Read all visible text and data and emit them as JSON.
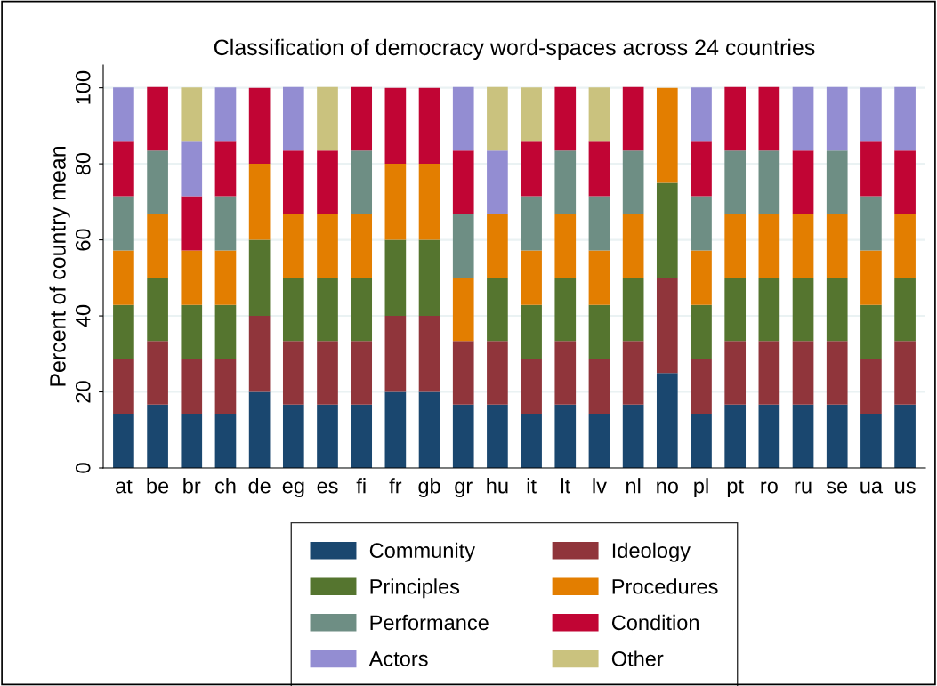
{
  "chart_data": {
    "type": "bar",
    "title": "Classification of democracy word-spaces across 24 countries",
    "ylabel": "Percent of country mean",
    "categories": [
      "at",
      "be",
      "br",
      "ch",
      "de",
      "eg",
      "es",
      "fi",
      "fr",
      "gb",
      "gr",
      "hu",
      "it",
      "lt",
      "lv",
      "nl",
      "no",
      "pl",
      "pt",
      "ro",
      "ru",
      "se",
      "ua",
      "us"
    ],
    "stacked": true,
    "ylim": [
      0,
      106
    ],
    "yticks": [
      0,
      20,
      40,
      60,
      80,
      100
    ],
    "grid": "y",
    "legend": "bottom",
    "series": [
      {
        "name": "Community",
        "color": "#1a476f",
        "values": [
          14.3,
          16.7,
          14.3,
          14.3,
          20,
          16.7,
          16.7,
          16.7,
          20,
          20,
          16.7,
          16.7,
          14.3,
          16.7,
          14.3,
          16.7,
          25,
          14.3,
          16.7,
          16.7,
          16.7,
          16.7,
          14.3,
          16.7
        ]
      },
      {
        "name": "Ideology",
        "color": "#90353b",
        "values": [
          14.3,
          16.7,
          14.3,
          14.3,
          20,
          16.7,
          16.7,
          16.7,
          20,
          20,
          16.7,
          16.7,
          14.3,
          16.7,
          14.3,
          16.7,
          25,
          14.3,
          16.7,
          16.7,
          16.7,
          16.7,
          14.3,
          16.7
        ]
      },
      {
        "name": "Principles",
        "color": "#55752f",
        "values": [
          14.3,
          16.7,
          14.3,
          14.3,
          20,
          16.7,
          16.7,
          16.7,
          20,
          20,
          0,
          16.7,
          14.3,
          16.7,
          14.3,
          16.7,
          25,
          14.3,
          16.7,
          16.7,
          16.7,
          16.7,
          14.3,
          16.7
        ]
      },
      {
        "name": "Procedures",
        "color": "#e37e00",
        "values": [
          14.3,
          16.7,
          14.3,
          14.3,
          20,
          16.7,
          16.7,
          16.7,
          20,
          20,
          16.7,
          16.7,
          14.3,
          16.7,
          14.3,
          16.7,
          25,
          14.3,
          16.7,
          16.7,
          16.7,
          16.7,
          14.3,
          16.7
        ]
      },
      {
        "name": "Performance",
        "color": "#6e8e84",
        "values": [
          14.3,
          16.7,
          0,
          14.3,
          0,
          0,
          0,
          16.7,
          0,
          0,
          16.7,
          0,
          14.3,
          16.7,
          14.3,
          16.7,
          0,
          14.3,
          16.7,
          16.7,
          0,
          16.7,
          14.3,
          0
        ]
      },
      {
        "name": "Condition",
        "color": "#c10534",
        "values": [
          14.3,
          16.7,
          14.3,
          14.3,
          20,
          16.7,
          16.7,
          16.7,
          20,
          20,
          16.7,
          0,
          14.3,
          16.7,
          14.3,
          16.7,
          0,
          14.3,
          16.7,
          16.7,
          16.7,
          0,
          14.3,
          16.7
        ]
      },
      {
        "name": "Actors",
        "color": "#938dd2",
        "values": [
          14.3,
          0,
          14.3,
          14.3,
          0,
          16.7,
          0,
          0,
          0,
          0,
          16.7,
          16.7,
          0,
          0,
          0,
          0,
          0,
          14.3,
          0,
          0,
          16.7,
          16.7,
          14.3,
          16.7
        ]
      },
      {
        "name": "Other",
        "color": "#cac27e",
        "values": [
          0,
          0,
          14.3,
          0,
          0,
          0,
          16.7,
          0,
          0,
          0,
          0,
          16.7,
          14.3,
          0,
          14.3,
          0,
          0,
          0,
          0,
          0,
          0,
          0,
          0,
          0
        ]
      }
    ]
  }
}
